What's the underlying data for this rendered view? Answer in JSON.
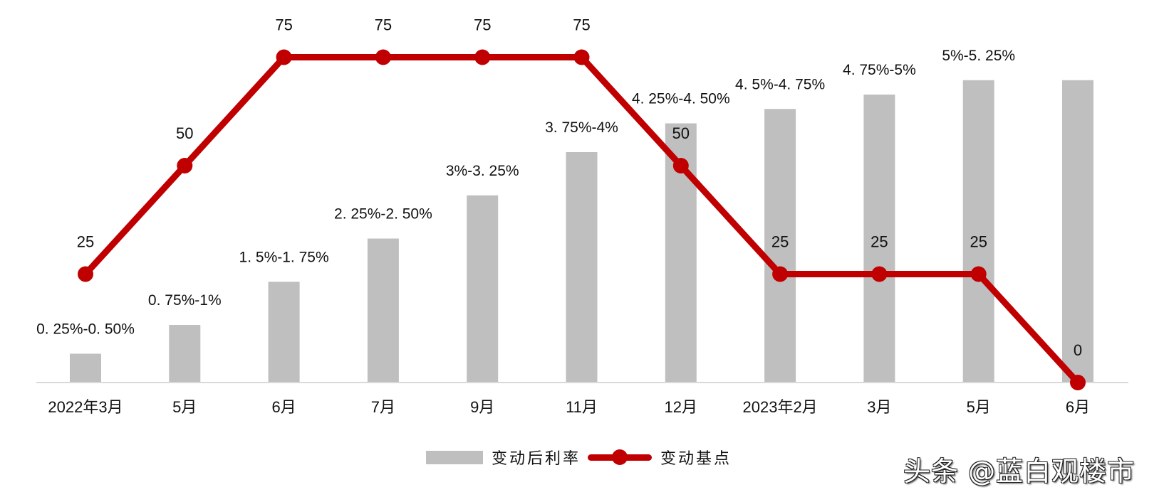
{
  "chart_data": {
    "type": "bar+line",
    "title": "",
    "categories": [
      "2022年3月",
      "5月",
      "6月",
      "7月",
      "9月",
      "11月",
      "12月",
      "2023年2月",
      "3月",
      "5月",
      "6月"
    ],
    "series": [
      {
        "name": "变动后利率",
        "type": "bar",
        "color": "#bfbfbf",
        "labels": [
          "0.25%-0.50%",
          "0.75%-1%",
          "1.5%-1.75%",
          "2.25%-2.50%",
          "3%-3.25%",
          "3.75%-4%",
          "4.25%-4.50%",
          "4.5%-4.75%",
          "4.75%-5%",
          "5%-5.25%",
          "5%-5.25%"
        ],
        "label_visible": [
          true,
          true,
          true,
          true,
          true,
          true,
          true,
          true,
          true,
          true,
          false
        ],
        "values_upper": [
          0.5,
          1.0,
          1.75,
          2.5,
          3.25,
          4.0,
          4.5,
          4.75,
          5.0,
          5.25,
          5.25
        ]
      },
      {
        "name": "变动基点",
        "type": "line",
        "color": "#c00000",
        "values": [
          25,
          50,
          75,
          75,
          75,
          75,
          50,
          25,
          25,
          25,
          0
        ]
      }
    ],
    "xlabel": "",
    "ylabel": "",
    "axes_visible": false,
    "grid": false,
    "legend_position": "bottom"
  },
  "legend": {
    "bar_label": "变动后利率",
    "line_label": "变动基点"
  },
  "watermark": "头条 @蓝白观楼市"
}
